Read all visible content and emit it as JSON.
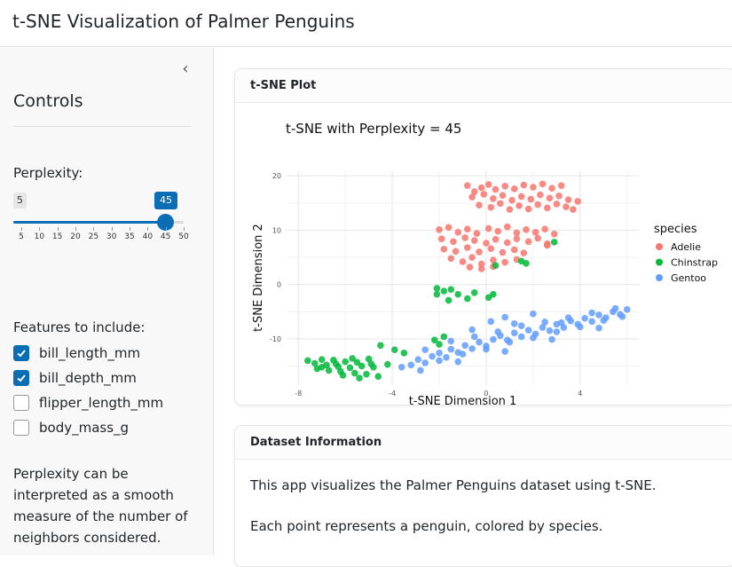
{
  "app": {
    "title": "t-SNE Visualization of Palmer Penguins"
  },
  "sidebar": {
    "collapse_icon": "chevron-left-icon",
    "title": "Controls",
    "perplexity": {
      "label": "Perplexity:",
      "min": 5,
      "max": 50,
      "value": 45,
      "min_label": "5",
      "value_label": "45",
      "ticks": [
        "5",
        "10",
        "15",
        "20",
        "25",
        "30",
        "35",
        "40",
        "45",
        "50"
      ],
      "accent": "#0b6eb5"
    },
    "features": {
      "label": "Features to include:",
      "items": [
        {
          "label": "bill_length_mm",
          "checked": true
        },
        {
          "label": "bill_depth_mm",
          "checked": true
        },
        {
          "label": "flipper_length_mm",
          "checked": false
        },
        {
          "label": "body_mass_g",
          "checked": false
        }
      ]
    },
    "help_text": "Perplexity can be interpreted as a smooth measure of the number of neighbors considered."
  },
  "plot_card": {
    "header": "t-SNE Plot"
  },
  "info_card": {
    "header": "Dataset Information",
    "line1": "This app visualizes the Palmer Penguins dataset using t-SNE.",
    "line2": "Each point represents a penguin, colored by species."
  },
  "chart_data": {
    "type": "scatter",
    "title": "t-SNE with Perplexity = 45",
    "xlabel": "t-SNE Dimension 1",
    "ylabel": "t-SNE Dimension 2",
    "xlim": [
      -8.5,
      6.5
    ],
    "ylim": [
      -18.5,
      21
    ],
    "xticks": [
      -8,
      -4,
      0,
      4
    ],
    "yticks": [
      -10,
      0,
      10,
      20
    ],
    "grid": true,
    "legend": {
      "title": "species",
      "position": "right"
    },
    "series": [
      {
        "name": "Adelie",
        "color": "#f8766d",
        "points": [
          [
            -0.8,
            18.2
          ],
          [
            -0.5,
            17.1
          ],
          [
            -0.2,
            17.8
          ],
          [
            0.1,
            18.4
          ],
          [
            0.4,
            17.5
          ],
          [
            0.8,
            18.1
          ],
          [
            1.2,
            17.6
          ],
          [
            1.6,
            18.3
          ],
          [
            2.0,
            17.9
          ],
          [
            2.4,
            18.5
          ],
          [
            2.8,
            17.7
          ],
          [
            3.2,
            18.2
          ],
          [
            -0.6,
            16.1
          ],
          [
            -0.1,
            16.6
          ],
          [
            0.3,
            15.8
          ],
          [
            0.7,
            16.4
          ],
          [
            1.1,
            15.5
          ],
          [
            1.5,
            16.2
          ],
          [
            1.9,
            15.7
          ],
          [
            2.3,
            16.5
          ],
          [
            2.7,
            15.9
          ],
          [
            3.1,
            16.3
          ],
          [
            3.5,
            15.6
          ],
          [
            3.9,
            15.3
          ],
          [
            -0.3,
            14.6
          ],
          [
            0.2,
            14.2
          ],
          [
            0.6,
            14.9
          ],
          [
            1.0,
            13.8
          ],
          [
            1.4,
            14.5
          ],
          [
            1.8,
            13.9
          ],
          [
            2.2,
            14.7
          ],
          [
            2.6,
            14.1
          ],
          [
            3.0,
            14.8
          ],
          [
            3.4,
            14.3
          ],
          [
            3.7,
            13.8
          ],
          [
            -2.0,
            10.1
          ],
          [
            -1.6,
            10.5
          ],
          [
            -1.2,
            9.6
          ],
          [
            -0.8,
            10.2
          ],
          [
            -0.4,
            9.4
          ],
          [
            0.1,
            10.3
          ],
          [
            0.5,
            9.8
          ],
          [
            0.9,
            10.6
          ],
          [
            1.3,
            9.5
          ],
          [
            1.7,
            10.1
          ],
          [
            2.1,
            9.6
          ],
          [
            2.5,
            10.2
          ],
          [
            2.9,
            9.3
          ],
          [
            -1.9,
            8.4
          ],
          [
            -1.4,
            7.9
          ],
          [
            -0.9,
            8.6
          ],
          [
            -0.5,
            8.1
          ],
          [
            0.0,
            7.6
          ],
          [
            0.4,
            8.3
          ],
          [
            0.9,
            7.7
          ],
          [
            1.3,
            8.4
          ],
          [
            1.8,
            7.9
          ],
          [
            2.2,
            8.5
          ],
          [
            2.6,
            7.5
          ],
          [
            -1.8,
            6.5
          ],
          [
            -1.3,
            6.1
          ],
          [
            -0.8,
            6.8
          ],
          [
            -0.3,
            6.0
          ],
          [
            0.2,
            6.6
          ],
          [
            0.7,
            5.9
          ],
          [
            1.2,
            6.4
          ],
          [
            1.6,
            5.8
          ],
          [
            2.6,
            7.2
          ],
          [
            -1.5,
            4.8
          ],
          [
            -1.0,
            4.2
          ],
          [
            -0.6,
            5.0
          ],
          [
            -0.2,
            3.8
          ],
          [
            0.3,
            4.5
          ],
          [
            0.8,
            4.1
          ],
          [
            1.3,
            4.6
          ],
          [
            -0.7,
            3.2
          ],
          [
            -0.2,
            2.9
          ],
          [
            0.3,
            3.3
          ]
        ]
      },
      {
        "name": "Chinstrap",
        "color": "#00ba38",
        "points": [
          [
            2.9,
            7.8
          ],
          [
            1.5,
            4.3
          ],
          [
            1.7,
            3.9
          ],
          [
            0.4,
            3.5
          ],
          [
            -2.1,
            -0.7
          ],
          [
            -1.8,
            -1.2
          ],
          [
            -1.5,
            -0.9
          ],
          [
            -1.2,
            -1.8
          ],
          [
            -0.8,
            -2.6
          ],
          [
            -0.5,
            -1.5
          ],
          [
            0.3,
            -1.8
          ],
          [
            0.1,
            -2.4
          ],
          [
            -2.1,
            -1.8
          ],
          [
            -1.6,
            -2.9
          ],
          [
            -7.6,
            -14.0
          ],
          [
            -7.3,
            -14.5
          ],
          [
            -7.0,
            -13.8
          ],
          [
            -6.8,
            -14.8
          ],
          [
            -6.5,
            -13.9
          ],
          [
            -6.3,
            -15.1
          ],
          [
            -6.0,
            -14.2
          ],
          [
            -5.8,
            -15.3
          ],
          [
            -5.5,
            -14.3
          ],
          [
            -5.3,
            -15.0
          ],
          [
            -5.0,
            -13.7
          ],
          [
            -4.8,
            -15.2
          ],
          [
            -7.2,
            -15.5
          ],
          [
            -6.7,
            -15.8
          ],
          [
            -6.2,
            -16.0
          ],
          [
            -5.6,
            -16.3
          ],
          [
            -5.1,
            -16.5
          ],
          [
            -4.9,
            -14.6
          ],
          [
            -5.7,
            -13.6
          ],
          [
            -6.4,
            -14.6
          ],
          [
            -7.0,
            -15.2
          ],
          [
            -6.1,
            -16.7
          ],
          [
            -5.4,
            -17.2
          ],
          [
            -4.6,
            -16.9
          ],
          [
            -4.2,
            -14.7
          ],
          [
            -4.5,
            -11.2
          ],
          [
            -3.9,
            -12.0
          ],
          [
            -3.5,
            -12.6
          ],
          [
            -2.2,
            -10.2
          ],
          [
            -1.8,
            -9.6
          ],
          [
            -2.0,
            -11.0
          ]
        ]
      },
      {
        "name": "Gentoo",
        "color": "#619cff",
        "points": [
          [
            -3.6,
            -15.2
          ],
          [
            -3.2,
            -14.8
          ],
          [
            -2.9,
            -13.8
          ],
          [
            -2.6,
            -14.4
          ],
          [
            -2.3,
            -13.2
          ],
          [
            -2.0,
            -12.6
          ],
          [
            -1.7,
            -13.4
          ],
          [
            -1.5,
            -11.9
          ],
          [
            -1.2,
            -12.5
          ],
          [
            -0.9,
            -11.2
          ],
          [
            -0.6,
            -11.8
          ],
          [
            -0.3,
            -10.6
          ],
          [
            0.0,
            -11.3
          ],
          [
            0.3,
            -10.1
          ],
          [
            0.6,
            -9.4
          ],
          [
            0.9,
            -10.2
          ],
          [
            1.2,
            -8.9
          ],
          [
            1.5,
            -9.6
          ],
          [
            1.8,
            -8.4
          ],
          [
            2.1,
            -9.1
          ],
          [
            2.4,
            -7.9
          ],
          [
            2.7,
            -8.5
          ],
          [
            3.0,
            -7.3
          ],
          [
            3.3,
            -7.9
          ],
          [
            3.6,
            -6.7
          ],
          [
            3.9,
            -7.3
          ],
          [
            4.2,
            -6.2
          ],
          [
            4.5,
            -6.8
          ],
          [
            4.8,
            -5.6
          ],
          [
            5.1,
            -6.1
          ],
          [
            5.4,
            -5.0
          ],
          [
            5.7,
            -5.5
          ],
          [
            6.0,
            -4.6
          ],
          [
            -2.8,
            -15.8
          ],
          [
            -2.0,
            -14.0
          ],
          [
            -1.0,
            -12.8
          ],
          [
            0.0,
            -11.9
          ],
          [
            1.0,
            -10.6
          ],
          [
            2.0,
            -9.8
          ],
          [
            3.0,
            -8.7
          ],
          [
            4.0,
            -7.8
          ],
          [
            5.0,
            -6.6
          ],
          [
            5.8,
            -5.9
          ],
          [
            -1.5,
            -10.4
          ],
          [
            -0.5,
            -9.6
          ],
          [
            0.5,
            -8.7
          ],
          [
            1.5,
            -7.6
          ],
          [
            2.5,
            -6.9
          ],
          [
            3.5,
            -6.1
          ],
          [
            4.5,
            -5.2
          ],
          [
            5.5,
            -4.4
          ],
          [
            0.8,
            -12.3
          ],
          [
            2.8,
            -10.1
          ],
          [
            4.8,
            -8.0
          ],
          [
            1.2,
            -7.2
          ],
          [
            0.2,
            -6.8
          ],
          [
            -0.6,
            -8.3
          ],
          [
            -2.6,
            -12.0
          ],
          [
            -1.2,
            -14.2
          ],
          [
            0.8,
            -6.0
          ],
          [
            2.0,
            -5.4
          ],
          [
            3.2,
            -7.0
          ]
        ]
      }
    ]
  }
}
